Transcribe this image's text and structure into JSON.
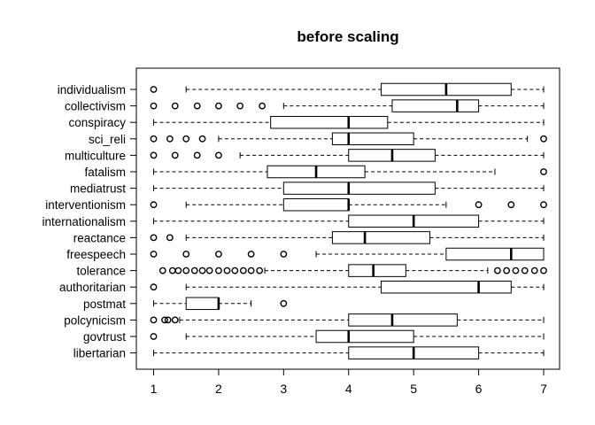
{
  "chart_data": {
    "type": "boxplot",
    "title": "before scaling",
    "xlabel": "",
    "ylabel": "",
    "orientation": "horizontal",
    "xlim": [
      1,
      7
    ],
    "xticks": [
      1,
      2,
      3,
      4,
      5,
      6,
      7
    ],
    "grid": false,
    "categories": [
      "individualism",
      "collectivism",
      "conspiracy",
      "sci_reli",
      "multiculture",
      "fatalism",
      "mediatrust",
      "interventionism",
      "internationalism",
      "reactance",
      "freespeech",
      "tolerance",
      "authoritarian",
      "postmat",
      "polcynicism",
      "govtrust",
      "libertarian"
    ],
    "boxes": [
      {
        "name": "individualism",
        "whisker_low": 1.5,
        "q1": 4.5,
        "median": 5.5,
        "q3": 6.5,
        "whisker_high": 7,
        "outliers": [
          1
        ]
      },
      {
        "name": "collectivism",
        "whisker_low": 3.0,
        "q1": 4.67,
        "median": 5.67,
        "q3": 6.0,
        "whisker_high": 7,
        "outliers": [
          1,
          1.33,
          1.67,
          2,
          2.33,
          2.67
        ]
      },
      {
        "name": "conspiracy",
        "whisker_low": 1,
        "q1": 2.8,
        "median": 4.0,
        "q3": 4.6,
        "whisker_high": 7,
        "outliers": []
      },
      {
        "name": "sci_reli",
        "whisker_low": 2.0,
        "q1": 3.75,
        "median": 4.0,
        "q3": 5.0,
        "whisker_high": 6.75,
        "outliers": [
          1,
          1.25,
          1.5,
          1.75,
          7
        ]
      },
      {
        "name": "multiculture",
        "whisker_low": 2.33,
        "q1": 4.0,
        "median": 4.67,
        "q3": 5.33,
        "whisker_high": 7,
        "outliers": [
          1,
          1.33,
          1.67,
          2
        ]
      },
      {
        "name": "fatalism",
        "whisker_low": 1,
        "q1": 2.75,
        "median": 3.5,
        "q3": 4.25,
        "whisker_high": 6.25,
        "outliers": [
          7
        ]
      },
      {
        "name": "mediatrust",
        "whisker_low": 1,
        "q1": 3.0,
        "median": 4.0,
        "q3": 5.33,
        "whisker_high": 7,
        "outliers": []
      },
      {
        "name": "interventionism",
        "whisker_low": 1.5,
        "q1": 3.0,
        "median": 4.0,
        "q3": 4.0,
        "whisker_high": 5.5,
        "outliers": [
          1,
          6,
          6.5,
          7
        ]
      },
      {
        "name": "internationalism",
        "whisker_low": 1,
        "q1": 4.0,
        "median": 5.0,
        "q3": 6.0,
        "whisker_high": 7,
        "outliers": []
      },
      {
        "name": "reactance",
        "whisker_low": 1.5,
        "q1": 3.75,
        "median": 4.25,
        "q3": 5.25,
        "whisker_high": 7,
        "outliers": [
          1,
          1.25
        ]
      },
      {
        "name": "freespeech",
        "whisker_low": 3.5,
        "q1": 5.5,
        "median": 6.5,
        "q3": 7.0,
        "whisker_high": 7,
        "outliers": [
          1,
          1.5,
          2,
          2.5,
          3
        ]
      },
      {
        "name": "tolerance",
        "whisker_low": 2.71,
        "q1": 4.0,
        "median": 4.38,
        "q3": 4.88,
        "whisker_high": 6.14,
        "outliers": [
          1.14,
          1.29,
          1.38,
          1.5,
          1.63,
          1.75,
          1.86,
          2,
          2.13,
          2.25,
          2.38,
          2.5,
          2.63,
          6.29,
          6.43,
          6.57,
          6.71,
          6.86,
          7
        ]
      },
      {
        "name": "authoritarian",
        "whisker_low": 1.5,
        "q1": 4.5,
        "median": 6.0,
        "q3": 6.5,
        "whisker_high": 7,
        "outliers": [
          1
        ]
      },
      {
        "name": "postmat",
        "whisker_low": 1.0,
        "q1": 1.5,
        "median": 2.0,
        "q3": 2.0,
        "whisker_high": 2.5,
        "outliers": [
          3
        ]
      },
      {
        "name": "polcynicism",
        "whisker_low": 1.4,
        "q1": 4.0,
        "median": 4.67,
        "q3": 5.67,
        "whisker_high": 7,
        "outliers": [
          1,
          1.17,
          1.22,
          1.33
        ]
      },
      {
        "name": "govtrust",
        "whisker_low": 1.5,
        "q1": 3.5,
        "median": 4.0,
        "q3": 5.0,
        "whisker_high": 7,
        "outliers": [
          1
        ]
      },
      {
        "name": "libertarian",
        "whisker_low": 1,
        "q1": 4.0,
        "median": 5.0,
        "q3": 6.0,
        "whisker_high": 7,
        "outliers": []
      }
    ]
  }
}
